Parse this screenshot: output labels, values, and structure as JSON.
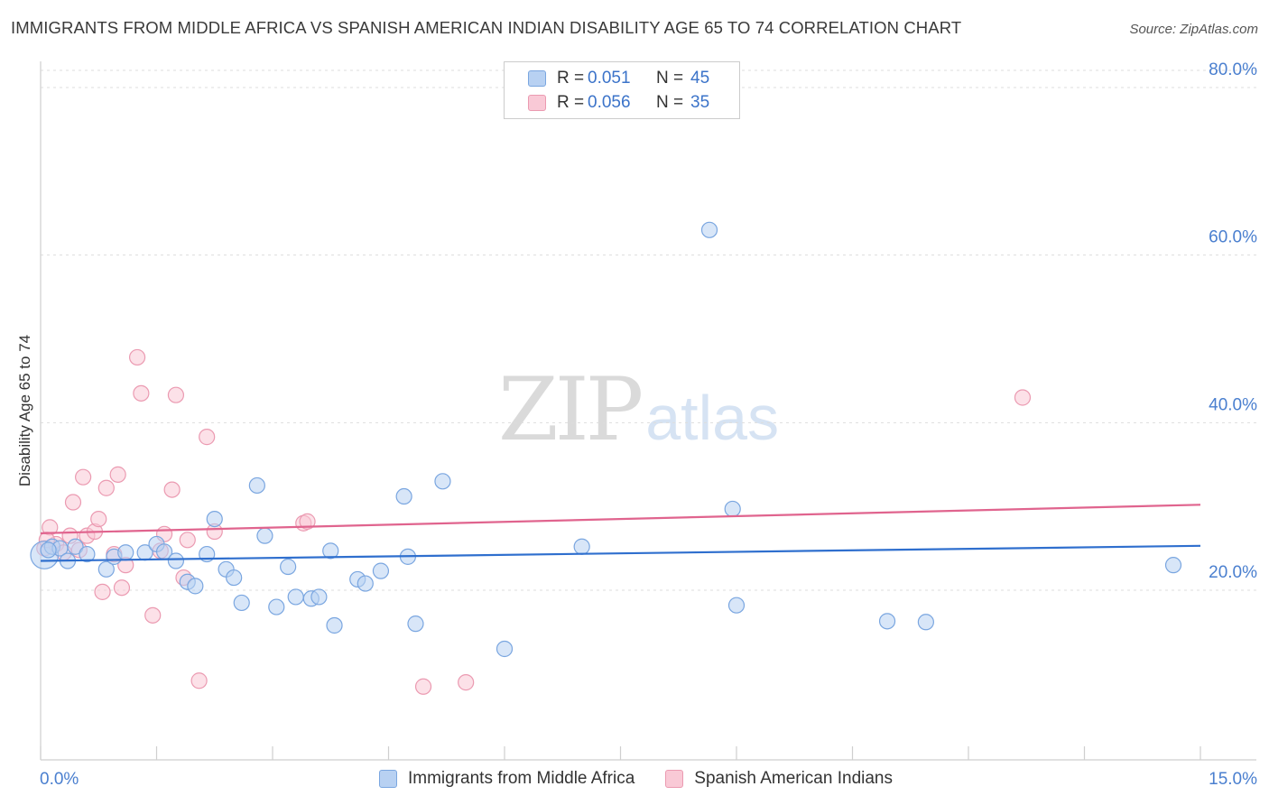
{
  "title": "IMMIGRANTS FROM MIDDLE AFRICA VS SPANISH AMERICAN INDIAN DISABILITY AGE 65 TO 74 CORRELATION CHART",
  "source": "Source: ZipAtlas.com",
  "watermark": {
    "zip": "ZIP",
    "atlas": "atlas"
  },
  "legend_top": [
    {
      "r_key": "R =",
      "r_value": "0.051",
      "n_key": "N =",
      "n_value": "45"
    },
    {
      "r_key": "R =",
      "r_value": "0.056",
      "n_key": "N =",
      "n_value": "35"
    }
  ],
  "legend_bottom": [
    {
      "label": "Immigrants from Middle Africa"
    },
    {
      "label": "Spanish American Indians"
    }
  ],
  "colors": {
    "blue_fill": "#b8d1f2",
    "blue_stroke": "#7aa6e0",
    "blue_line": "#2f6fce",
    "pink_fill": "#f9c9d6",
    "pink_stroke": "#eb9ab1",
    "pink_line": "#e0648e",
    "axis_text": "#4a7fcf",
    "grid": "#dddddd"
  },
  "chart_data": {
    "type": "scatter",
    "title": "IMMIGRANTS FROM MIDDLE AFRICA VS SPANISH AMERICAN INDIAN DISABILITY AGE 65 TO 74 CORRELATION CHART",
    "xlabel": "",
    "ylabel": "Disability Age 65 to 74",
    "xlim": [
      0,
      15
    ],
    "ylim": [
      0,
      85
    ],
    "x_tick_labels": [
      "0.0%",
      "15.0%"
    ],
    "y_ticks": [
      20,
      40,
      60,
      80
    ],
    "y_tick_labels": [
      "20.0%",
      "40.0%",
      "60.0%",
      "80.0%"
    ],
    "grid": true,
    "legend_position": "top-center",
    "series": [
      {
        "name": "Immigrants from Middle Africa",
        "color": "#7aa6e0",
        "trend": {
          "x": [
            0,
            15
          ],
          "y": [
            23.5,
            25.3
          ]
        },
        "points": [
          [
            0.05,
            24.2,
            1.8
          ],
          [
            0.15,
            25.2,
            1.0
          ],
          [
            0.25,
            25.0,
            1.0
          ],
          [
            0.35,
            23.5,
            1.0
          ],
          [
            0.45,
            25.2,
            1.0
          ],
          [
            0.6,
            24.3,
            1.0
          ],
          [
            0.85,
            22.5,
            1.0
          ],
          [
            0.95,
            24.0,
            1.0
          ],
          [
            1.1,
            24.5,
            1.0
          ],
          [
            1.35,
            24.5,
            1.0
          ],
          [
            1.5,
            25.5,
            1.0
          ],
          [
            1.6,
            24.6,
            1.0
          ],
          [
            1.75,
            23.5,
            1.0
          ],
          [
            1.9,
            21.0,
            1.0
          ],
          [
            2.0,
            20.5,
            1.0
          ],
          [
            2.15,
            24.3,
            1.0
          ],
          [
            2.25,
            28.5,
            1.0
          ],
          [
            2.4,
            22.5,
            1.0
          ],
          [
            2.5,
            21.5,
            1.0
          ],
          [
            2.6,
            18.5,
            1.0
          ],
          [
            2.8,
            32.5,
            1.0
          ],
          [
            2.9,
            26.5,
            1.0
          ],
          [
            3.05,
            18.0,
            1.0
          ],
          [
            3.2,
            22.8,
            1.0
          ],
          [
            3.3,
            19.2,
            1.0
          ],
          [
            3.5,
            19.0,
            1.0
          ],
          [
            3.6,
            19.2,
            1.0
          ],
          [
            3.75,
            24.7,
            1.0
          ],
          [
            3.8,
            15.8,
            1.0
          ],
          [
            4.1,
            21.3,
            1.0
          ],
          [
            4.2,
            20.8,
            1.0
          ],
          [
            4.4,
            22.3,
            1.0
          ],
          [
            4.7,
            31.2,
            1.0
          ],
          [
            4.75,
            24.0,
            1.0
          ],
          [
            4.85,
            16.0,
            1.0
          ],
          [
            5.2,
            33.0,
            1.0
          ],
          [
            6.0,
            13.0,
            1.0
          ],
          [
            7.0,
            25.2,
            1.0
          ],
          [
            8.65,
            63.0,
            1.0
          ],
          [
            8.95,
            29.7,
            1.0
          ],
          [
            9.0,
            18.2,
            1.0
          ],
          [
            10.95,
            16.3,
            1.0
          ],
          [
            11.45,
            16.2,
            1.0
          ],
          [
            14.65,
            23.0,
            1.0
          ],
          [
            0.1,
            24.8,
            1.0
          ]
        ]
      },
      {
        "name": "Spanish American Indians",
        "color": "#eb9ab1",
        "trend": {
          "x": [
            0,
            15
          ],
          "y": [
            26.8,
            30.2
          ]
        },
        "points": [
          [
            0.05,
            25.0,
            1.0
          ],
          [
            0.12,
            27.5,
            1.0
          ],
          [
            0.2,
            25.5,
            1.0
          ],
          [
            0.3,
            24.5,
            1.0
          ],
          [
            0.38,
            26.5,
            1.0
          ],
          [
            0.42,
            30.5,
            1.0
          ],
          [
            0.5,
            24.8,
            1.0
          ],
          [
            0.55,
            33.5,
            1.0
          ],
          [
            0.6,
            26.5,
            1.0
          ],
          [
            0.7,
            27.0,
            1.0
          ],
          [
            0.75,
            28.5,
            1.0
          ],
          [
            0.8,
            19.8,
            1.0
          ],
          [
            0.85,
            32.2,
            1.0
          ],
          [
            0.95,
            24.3,
            1.0
          ],
          [
            1.0,
            33.8,
            1.0
          ],
          [
            1.05,
            20.3,
            1.0
          ],
          [
            1.1,
            23.0,
            1.0
          ],
          [
            1.25,
            47.8,
            1.0
          ],
          [
            1.3,
            43.5,
            1.0
          ],
          [
            1.45,
            17.0,
            1.0
          ],
          [
            1.55,
            24.7,
            1.0
          ],
          [
            1.6,
            26.7,
            1.0
          ],
          [
            1.7,
            32.0,
            1.0
          ],
          [
            1.75,
            43.3,
            1.0
          ],
          [
            1.85,
            21.5,
            1.0
          ],
          [
            1.9,
            26.0,
            1.0
          ],
          [
            2.05,
            9.2,
            1.0
          ],
          [
            2.15,
            38.3,
            1.0
          ],
          [
            2.25,
            27.0,
            1.0
          ],
          [
            3.4,
            28.0,
            1.0
          ],
          [
            3.45,
            28.2,
            1.0
          ],
          [
            4.95,
            8.5,
            1.0
          ],
          [
            5.5,
            9.0,
            1.0
          ],
          [
            12.7,
            43.0,
            1.0
          ],
          [
            0.08,
            26.0,
            1.0
          ]
        ]
      }
    ]
  }
}
